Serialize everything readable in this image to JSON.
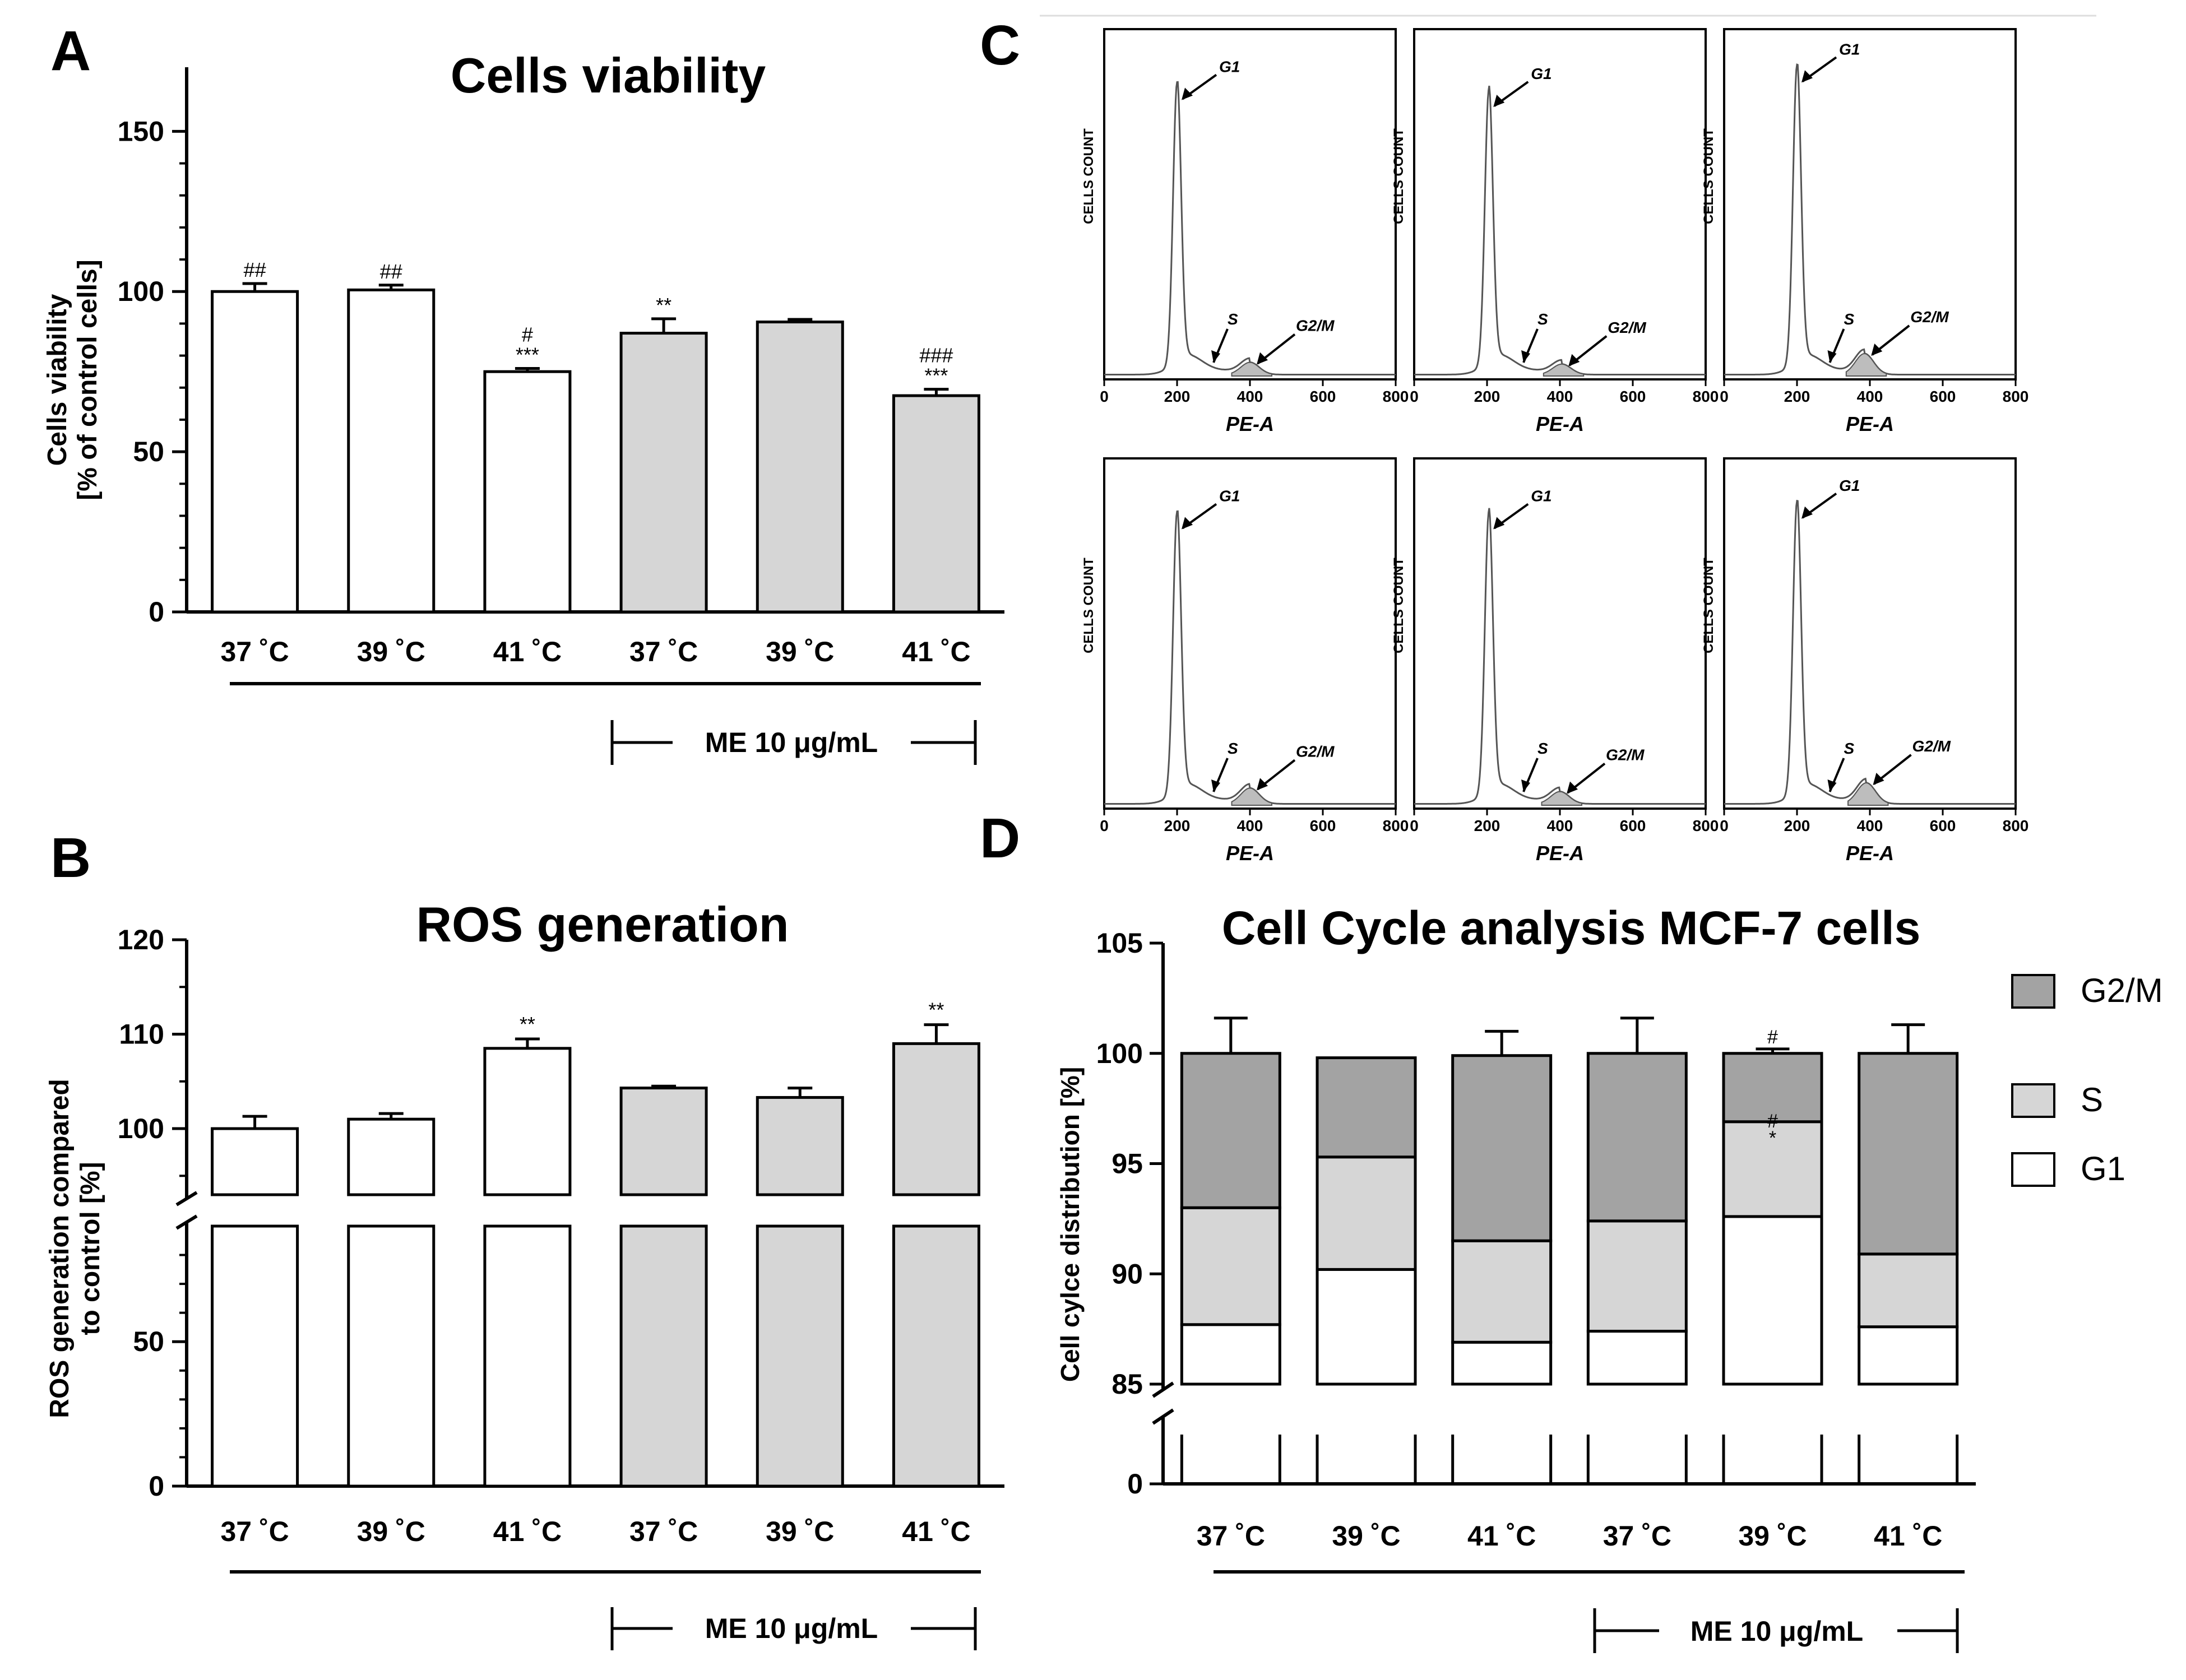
{
  "figure": {
    "panel_letters": [
      "A",
      "B",
      "C",
      "D"
    ],
    "treatment_label": "ME 10 μg/mL"
  },
  "colors": {
    "control_bar": "#ffffff",
    "treated_bar": "#d6d6d6",
    "s_phase": "#d6d6d6",
    "g2m_phase": "#a3a3a3",
    "g1_phase": "#ffffff",
    "line": "#000000",
    "histogram_fill": "#bdbdbd"
  },
  "chart_data": [
    {
      "id": "A",
      "type": "bar",
      "title": "Cells viability",
      "ylabel": [
        "Cells viability",
        "[% of control cells]"
      ],
      "xlabel": "",
      "categories": [
        "37 ˚C",
        "39 ˚C",
        "41 ˚C",
        "37 ˚C",
        "39 ˚C",
        "41 ˚C"
      ],
      "values": [
        100,
        100.5,
        75,
        87,
        90.5,
        67.5
      ],
      "errors": [
        2.5,
        1.5,
        1.0,
        4.5,
        0.8,
        2.0
      ],
      "treated": [
        false,
        false,
        false,
        true,
        true,
        true
      ],
      "annotations": [
        [
          "##"
        ],
        [
          "##"
        ],
        [
          "#",
          "***"
        ],
        [
          "**"
        ],
        [],
        [
          "###",
          "***"
        ]
      ],
      "ylim": [
        0,
        170
      ],
      "yticks": [
        0,
        50,
        100,
        150
      ]
    },
    {
      "id": "B",
      "type": "bar",
      "title": "ROS generation",
      "ylabel": [
        "ROS generation compared",
        "to control [%]"
      ],
      "xlabel": "",
      "categories": [
        "37 ˚C",
        "39 ˚C",
        "41 ˚C",
        "37 ˚C",
        "39 ˚C",
        "41 ˚C"
      ],
      "values": [
        100,
        101,
        108.5,
        104.3,
        103.3,
        109
      ],
      "errors": [
        1.3,
        0.6,
        1.0,
        0.2,
        1.0,
        2.0
      ],
      "treated": [
        false,
        false,
        false,
        true,
        true,
        true
      ],
      "annotations": [
        [],
        [],
        [
          "**"
        ],
        [],
        [],
        [
          "**"
        ]
      ],
      "axis_break": true,
      "lower_ylim": [
        0,
        90
      ],
      "lower_yticks": [
        0,
        50
      ],
      "upper_ylim": [
        93,
        120
      ],
      "upper_yticks": [
        100,
        110,
        120
      ]
    },
    {
      "id": "C",
      "type": "histogram",
      "title": "",
      "xlabel": "PE-A",
      "ylabel": "CELLS COUNT",
      "xticks": [
        0,
        200,
        400,
        600,
        800
      ],
      "peak_labels": [
        "G1",
        "S",
        "G2/M"
      ],
      "histograms": [
        {
          "g1_pos": 200,
          "s_pos": 300,
          "g2m_pos": 400,
          "g1_height": 0.8,
          "g2m_height": 0.035
        },
        {
          "g1_pos": 205,
          "s_pos": 300,
          "g2m_pos": 405,
          "g1_height": 0.78,
          "g2m_height": 0.03
        },
        {
          "g1_pos": 200,
          "s_pos": 290,
          "g2m_pos": 385,
          "g1_height": 0.85,
          "g2m_height": 0.06
        },
        {
          "g1_pos": 200,
          "s_pos": 300,
          "g2m_pos": 400,
          "g1_height": 0.8,
          "g2m_height": 0.045
        },
        {
          "g1_pos": 205,
          "s_pos": 300,
          "g2m_pos": 400,
          "g1_height": 0.8,
          "g2m_height": 0.035
        },
        {
          "g1_pos": 200,
          "s_pos": 290,
          "g2m_pos": 390,
          "g1_height": 0.83,
          "g2m_height": 0.06
        }
      ]
    },
    {
      "id": "D",
      "type": "stacked_bar",
      "title": "Cell Cycle analysis MCF-7 cells",
      "ylabel": "Cell cylce distribution [%]",
      "xlabel": "",
      "categories": [
        "37 ˚C",
        "39 ˚C",
        "41 ˚C",
        "37 ˚C",
        "39 ˚C",
        "41 ˚C"
      ],
      "legend": [
        "G2/M",
        "S",
        "G1"
      ],
      "series": [
        {
          "name": "G1",
          "values": [
            87.7,
            90.2,
            86.9,
            87.4,
            92.6,
            87.6
          ],
          "errors": [
            1.9,
            0.3,
            0.5,
            2.4,
            0.1,
            1.9
          ]
        },
        {
          "name": "S",
          "values": [
            5.3,
            5.1,
            4.6,
            5.0,
            4.3,
            3.3
          ],
          "errors": [
            0.7,
            0.3,
            0.6,
            0.8,
            0.3,
            0.5
          ]
        },
        {
          "name": "G2/M",
          "values": [
            7.0,
            4.5,
            8.4,
            7.6,
            3.1,
            9.1
          ],
          "errors": [
            1.6,
            0.0,
            1.1,
            1.6,
            0.2,
            1.3
          ]
        }
      ],
      "annotations": [
        {
          "bar": 4,
          "segment": "G2/M",
          "labels": [
            "#"
          ]
        },
        {
          "bar": 4,
          "segment": "S",
          "labels": [
            "#",
            "*"
          ]
        }
      ],
      "axis_break": true,
      "upper_ylim": [
        85,
        105
      ],
      "upper_yticks": [
        85,
        90,
        95,
        100,
        105
      ],
      "lower_ylim": [
        0,
        85
      ],
      "lower_yticks": [
        0
      ]
    }
  ]
}
